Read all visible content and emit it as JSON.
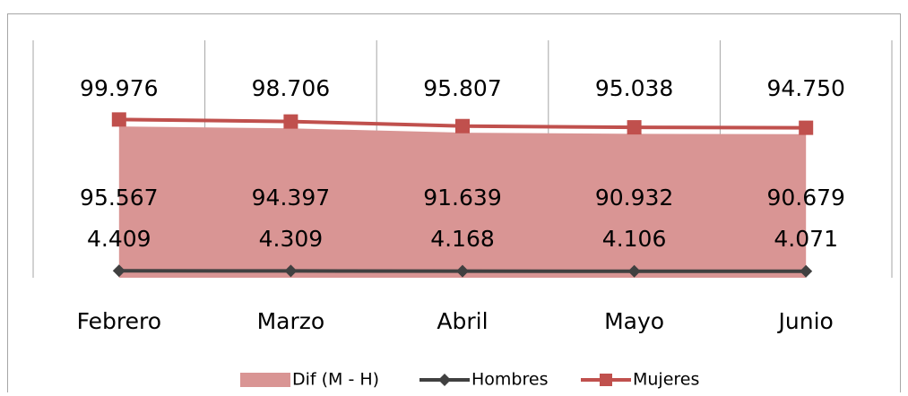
{
  "chart_data": {
    "type": "line",
    "categories": [
      "Febrero",
      "Marzo",
      "Abril",
      "Mayo",
      "Junio"
    ],
    "series": [
      {
        "name": "Dif (M - H)",
        "kind": "area",
        "color": "#d99594",
        "values": [
          95.567,
          94.397,
          91.639,
          90.932,
          90.679
        ],
        "value_labels": [
          "95.567",
          "94.397",
          "91.639",
          "90.932",
          "90.679"
        ]
      },
      {
        "name": "Hombres",
        "kind": "line",
        "marker": "diamond",
        "color": "#404040",
        "values": [
          4.409,
          4.309,
          4.168,
          4.106,
          4.071
        ],
        "value_labels": [
          "4.409",
          "4.309",
          "4.168",
          "4.106",
          "4.071"
        ]
      },
      {
        "name": "Mujeres",
        "kind": "line",
        "marker": "square",
        "color": "#c0504d",
        "values": [
          99.976,
          98.706,
          95.807,
          95.038,
          94.75
        ],
        "value_labels": [
          "99.976",
          "98.706",
          "95.807",
          "95.038",
          "94.750"
        ]
      }
    ],
    "ylim": [
      0,
      150
    ],
    "grid": "vertical",
    "legend": "bottom"
  }
}
